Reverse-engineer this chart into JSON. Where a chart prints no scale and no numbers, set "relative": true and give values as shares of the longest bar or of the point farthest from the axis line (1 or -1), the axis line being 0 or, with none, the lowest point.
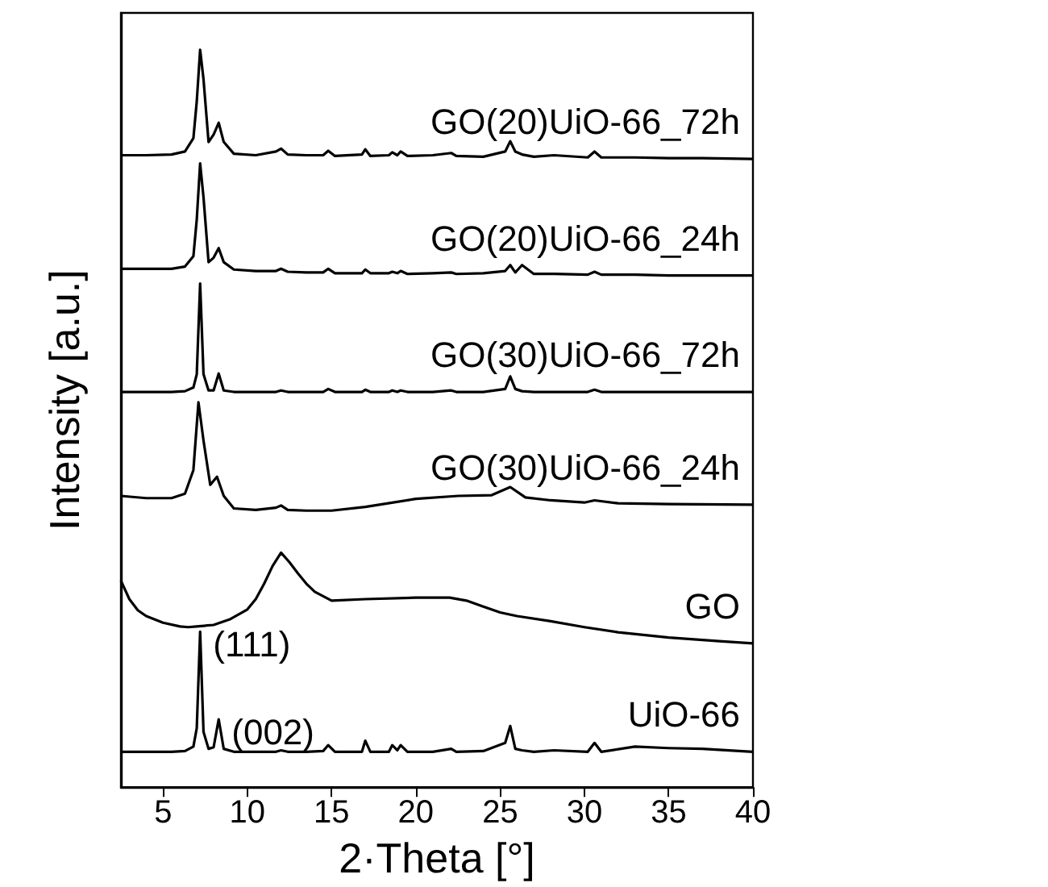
{
  "chart_data": {
    "type": "line",
    "relative": true,
    "xlabel": "2·Theta [°]",
    "ylabel": "Intensity [a.u.]",
    "xlim": [
      2.5,
      40
    ],
    "xticks": [
      5,
      10,
      15,
      20,
      25,
      30,
      35,
      40
    ],
    "legend": false,
    "grid": false,
    "marker": "none",
    "line_style": "solid",
    "annotations": [
      {
        "text": "(111)",
        "x": 7.2,
        "y": 0.211
      },
      {
        "text": "(002)",
        "x": 8.3,
        "y": 0.092
      }
    ],
    "series": [
      {
        "name": "GO(20)UiO-66_72h",
        "color": "#000000",
        "x": [
          2.5,
          4,
          5.5,
          6.3,
          6.8,
          7.0,
          7.2,
          7.4,
          7.7,
          8.0,
          8.3,
          8.6,
          9.2,
          10.5,
          11.7,
          12.0,
          12.4,
          13.5,
          14.5,
          14.8,
          15.2,
          16.8,
          17.0,
          17.3,
          18.4,
          18.6,
          18.9,
          19.1,
          19.5,
          21,
          22.1,
          22.4,
          24,
          25.3,
          25.6,
          25.9,
          26.3,
          27,
          28.2,
          30.2,
          30.6,
          31,
          33,
          35,
          37,
          40
        ],
        "values": [
          0.857,
          0.857,
          0.858,
          0.862,
          0.88,
          0.93,
          1.0,
          0.96,
          0.875,
          0.885,
          0.901,
          0.875,
          0.859,
          0.857,
          0.862,
          0.866,
          0.858,
          0.857,
          0.857,
          0.863,
          0.856,
          0.858,
          0.865,
          0.856,
          0.857,
          0.861,
          0.857,
          0.862,
          0.856,
          0.857,
          0.86,
          0.856,
          0.855,
          0.862,
          0.876,
          0.862,
          0.858,
          0.855,
          0.857,
          0.854,
          0.862,
          0.854,
          0.854,
          0.853,
          0.853,
          0.852
        ]
      },
      {
        "name": "GO(20)UiO-66_24h",
        "color": "#000000",
        "x": [
          2.5,
          4,
          5.5,
          6.3,
          6.8,
          7.0,
          7.2,
          7.4,
          7.7,
          8.0,
          8.3,
          8.6,
          9.2,
          10.5,
          11.7,
          12.0,
          12.4,
          13.5,
          14.5,
          14.8,
          15.2,
          16.8,
          17.0,
          17.3,
          18.4,
          18.6,
          18.9,
          19.1,
          19.5,
          21,
          22.1,
          22.4,
          24,
          25.3,
          25.6,
          25.9,
          26.3,
          27,
          28.2,
          30.2,
          30.6,
          31,
          33,
          35,
          37,
          40
        ],
        "values": [
          0.703,
          0.703,
          0.703,
          0.706,
          0.72,
          0.77,
          0.846,
          0.8,
          0.712,
          0.718,
          0.731,
          0.712,
          0.702,
          0.7,
          0.7,
          0.703,
          0.699,
          0.698,
          0.698,
          0.703,
          0.697,
          0.697,
          0.702,
          0.697,
          0.697,
          0.699,
          0.697,
          0.7,
          0.696,
          0.697,
          0.698,
          0.696,
          0.697,
          0.7,
          0.708,
          0.698,
          0.708,
          0.696,
          0.696,
          0.695,
          0.699,
          0.695,
          0.695,
          0.694,
          0.694,
          0.694
        ]
      },
      {
        "name": "GO(30)UiO-66_72h",
        "color": "#000000",
        "x": [
          2.5,
          4,
          5.5,
          6.3,
          6.8,
          7.0,
          7.2,
          7.4,
          7.7,
          8.0,
          8.3,
          8.6,
          9.2,
          10.5,
          11.7,
          12.0,
          12.4,
          13.5,
          14.5,
          14.8,
          15.2,
          16.8,
          17.0,
          17.3,
          18.4,
          18.6,
          18.9,
          19.1,
          19.5,
          21,
          22.1,
          22.4,
          24,
          25.3,
          25.6,
          25.9,
          26.3,
          27,
          28.2,
          30.2,
          30.6,
          31,
          33,
          35,
          37,
          40
        ],
        "values": [
          0.536,
          0.536,
          0.536,
          0.537,
          0.542,
          0.56,
          0.683,
          0.56,
          0.538,
          0.538,
          0.561,
          0.538,
          0.536,
          0.536,
          0.536,
          0.538,
          0.536,
          0.536,
          0.536,
          0.54,
          0.536,
          0.536,
          0.539,
          0.536,
          0.536,
          0.538,
          0.536,
          0.538,
          0.536,
          0.536,
          0.538,
          0.536,
          0.536,
          0.54,
          0.557,
          0.54,
          0.537,
          0.536,
          0.536,
          0.536,
          0.539,
          0.536,
          0.536,
          0.536,
          0.536,
          0.536
        ]
      },
      {
        "name": "GO(30)UiO-66_24h",
        "color": "#000000",
        "x": [
          2.5,
          4,
          5.5,
          6.3,
          6.8,
          7.1,
          7.4,
          7.8,
          8.2,
          8.6,
          9.2,
          10.5,
          11.7,
          12,
          12.4,
          13.5,
          15,
          17,
          20,
          22.5,
          24.5,
          25.6,
          26.5,
          28,
          30,
          30.6,
          32,
          35,
          40
        ],
        "values": [
          0.395,
          0.392,
          0.392,
          0.398,
          0.43,
          0.522,
          0.47,
          0.41,
          0.421,
          0.395,
          0.378,
          0.376,
          0.379,
          0.382,
          0.376,
          0.375,
          0.375,
          0.38,
          0.391,
          0.395,
          0.396,
          0.407,
          0.393,
          0.389,
          0.386,
          0.389,
          0.385,
          0.384,
          0.383
        ]
      },
      {
        "name": "GO",
        "color": "#000000",
        "x": [
          2.5,
          3,
          3.5,
          4,
          5,
          6,
          6.5,
          7,
          8,
          9,
          10,
          10.5,
          11,
          11.5,
          12,
          12.5,
          13,
          13.5,
          14,
          15,
          17,
          20,
          22,
          23,
          24,
          25,
          26,
          28,
          30,
          32,
          35,
          38,
          40
        ],
        "values": [
          0.28,
          0.255,
          0.24,
          0.232,
          0.223,
          0.218,
          0.217,
          0.218,
          0.22,
          0.228,
          0.241,
          0.255,
          0.276,
          0.3,
          0.318,
          0.305,
          0.29,
          0.276,
          0.265,
          0.253,
          0.255,
          0.257,
          0.257,
          0.253,
          0.245,
          0.237,
          0.232,
          0.225,
          0.217,
          0.21,
          0.203,
          0.198,
          0.195
        ]
      },
      {
        "name": "UiO-66",
        "color": "#000000",
        "x": [
          2.5,
          4,
          5.5,
          6.3,
          6.8,
          7.0,
          7.2,
          7.4,
          7.7,
          8.0,
          8.3,
          8.6,
          9.2,
          10.5,
          11.7,
          12.0,
          12.4,
          13.5,
          14.5,
          14.8,
          15.2,
          16.8,
          17.0,
          17.3,
          18.4,
          18.6,
          18.9,
          19.1,
          19.5,
          21,
          22.1,
          22.4,
          24,
          25.3,
          25.6,
          25.9,
          26.3,
          27,
          28.2,
          30.2,
          30.6,
          31,
          33,
          35,
          37,
          40
        ],
        "values": [
          0.048,
          0.048,
          0.048,
          0.049,
          0.055,
          0.08,
          0.211,
          0.075,
          0.052,
          0.054,
          0.092,
          0.052,
          0.048,
          0.048,
          0.048,
          0.05,
          0.048,
          0.048,
          0.049,
          0.057,
          0.048,
          0.048,
          0.063,
          0.048,
          0.048,
          0.057,
          0.05,
          0.057,
          0.048,
          0.048,
          0.052,
          0.048,
          0.049,
          0.06,
          0.083,
          0.052,
          0.05,
          0.048,
          0.05,
          0.048,
          0.06,
          0.048,
          0.055,
          0.053,
          0.052,
          0.048
        ]
      }
    ]
  }
}
